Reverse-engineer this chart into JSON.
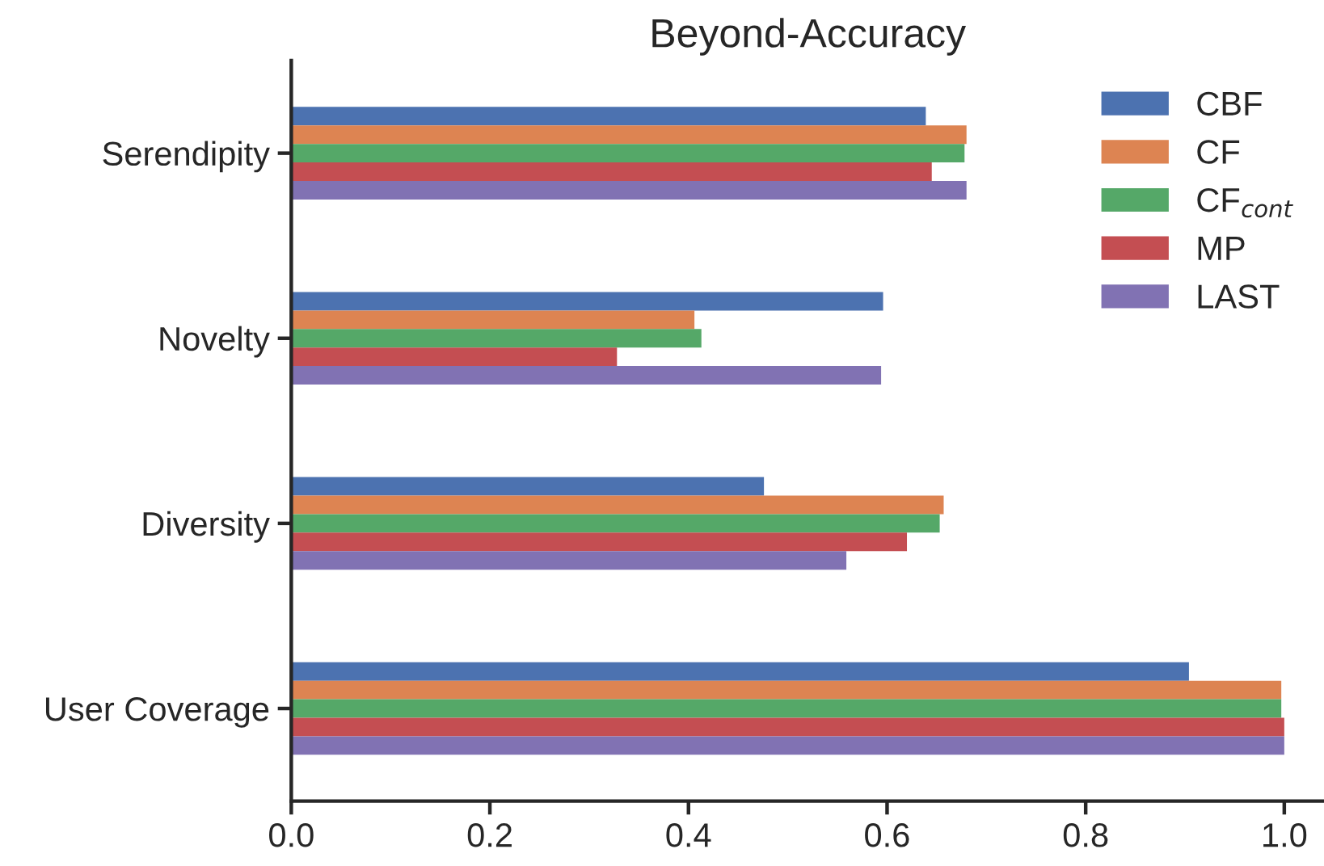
{
  "chart_data": {
    "type": "bar",
    "orientation": "horizontal",
    "title": "Beyond-Accuracy",
    "categories": [
      "Serendipity",
      "Novelty",
      "Diversity",
      "User Coverage"
    ],
    "series": [
      {
        "name": "CBF",
        "color": "#4c72b0",
        "values": [
          0.639,
          0.596,
          0.476,
          0.904
        ]
      },
      {
        "name": "CF",
        "color": "#dd8452",
        "values": [
          0.68,
          0.406,
          0.657,
          0.997
        ]
      },
      {
        "name": "CF$_{cont}$",
        "color": "#55a868",
        "values": [
          0.678,
          0.413,
          0.653,
          0.997
        ]
      },
      {
        "name": "MP",
        "color": "#c44e52",
        "values": [
          0.645,
          0.328,
          0.62,
          1.0
        ]
      },
      {
        "name": "LAST",
        "color": "#8172b3",
        "values": [
          0.68,
          0.594,
          0.559,
          1.0
        ]
      }
    ],
    "xlim": [
      0,
      1.04
    ],
    "xticks": [
      {
        "value": 0,
        "label": "0.0"
      },
      0.2,
      0.4,
      0.6,
      0.8,
      {
        "value": 1,
        "label": "1.0"
      }
    ],
    "legend": "top right",
    "grid": false
  }
}
